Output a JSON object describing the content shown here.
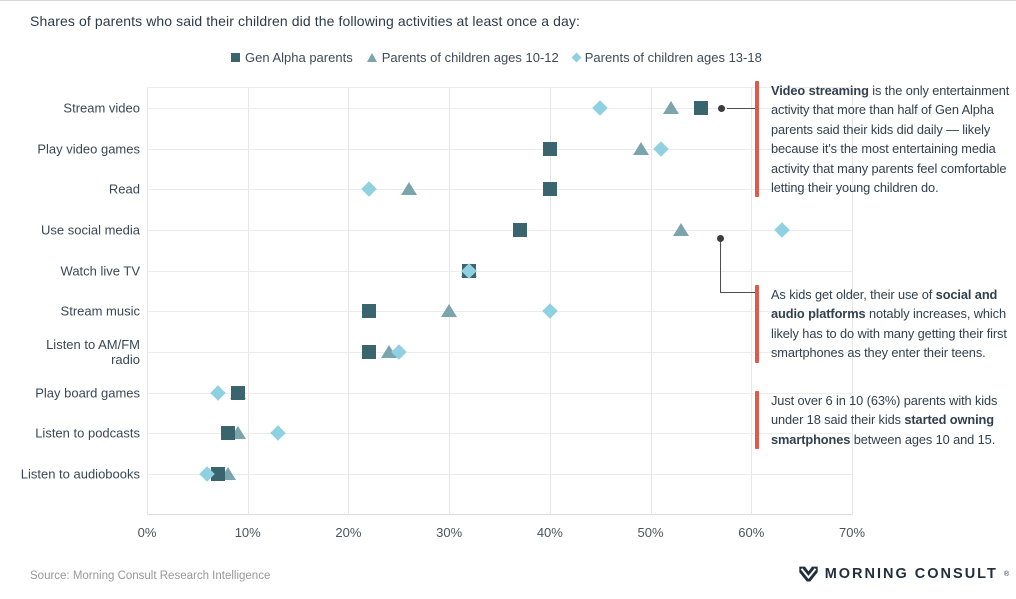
{
  "title": "Shares of parents who said their children did the following activities at least once a day:",
  "legend": [
    {
      "label": "Gen Alpha parents",
      "marker": "square"
    },
    {
      "label": "Parents of children ages 10-12",
      "marker": "triangle"
    },
    {
      "label": "Parents of children ages 13-18",
      "marker": "diamond"
    }
  ],
  "chart_data": {
    "type": "scatter",
    "subtype": "horizontal-dot-plot",
    "title": "Shares of parents who said their children did the following activities at least once a day:",
    "categories": [
      "Stream video",
      "Play video games",
      "Read",
      "Use social media",
      "Watch live TV",
      "Stream music",
      "Listen to AM/FM radio",
      "Play board games",
      "Listen to podcasts",
      "Listen to audiobooks"
    ],
    "series": [
      {
        "name": "Gen Alpha parents",
        "marker": "square",
        "color": "#3a646e",
        "values": [
          55,
          40,
          40,
          37,
          32,
          22,
          22,
          9,
          8,
          7
        ]
      },
      {
        "name": "Parents of children ages 10-12",
        "marker": "triangle",
        "color": "#7ba4ad",
        "values": [
          52,
          49,
          26,
          53,
          32,
          30,
          24,
          9,
          9,
          8
        ]
      },
      {
        "name": "Parents of children ages 13-18",
        "marker": "diamond",
        "color": "#8fd1e1",
        "values": [
          45,
          51,
          22,
          63,
          32,
          40,
          25,
          7,
          13,
          6
        ]
      }
    ],
    "xlim": [
      0,
      70
    ],
    "x_ticks": [
      "0%",
      "10%",
      "20%",
      "30%",
      "40%",
      "50%",
      "60%",
      "70%"
    ],
    "grid": true,
    "legend_position": "top"
  },
  "annotations": [
    {
      "segments": [
        {
          "text": "Video streaming",
          "bold": true
        },
        {
          "text": " is the only entertainment activity that more than half of Gen Alpha parents said their kids did daily — likely because it's the most entertaining media activity that many parents feel comfortable letting their young children do.",
          "bold": false
        }
      ]
    },
    {
      "segments": [
        {
          "text": "As kids get older, their use of ",
          "bold": false
        },
        {
          "text": "social and audio platforms",
          "bold": true
        },
        {
          "text": " notably increases, which likely has to do with many getting their first smartphones as they enter their teens.",
          "bold": false
        }
      ]
    },
    {
      "segments": [
        {
          "text": "Just over 6 in 10 (63%) parents with kids under 18 said their kids ",
          "bold": false
        },
        {
          "text": "started owning smartphones",
          "bold": true
        },
        {
          "text": " between ages 10 and 15.",
          "bold": false
        }
      ]
    }
  ],
  "footer": {
    "source": "Source: Morning Consult Research Intelligence",
    "brand": "MORNING CONSULT",
    "brand_reg_mark": "®"
  },
  "colors": {
    "accent_red": "#e0594d",
    "square": "#3a646e",
    "triangle": "#7ba4ad",
    "diamond": "#8fd1e1",
    "grid": "#e7e7e7",
    "text_dark": "#2e3b49",
    "text_gray": "#97999c"
  }
}
